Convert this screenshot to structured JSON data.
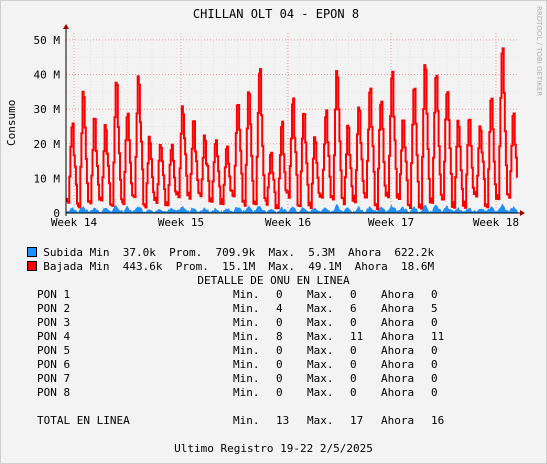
{
  "chart_data": {
    "type": "area",
    "title": "CHILLAN OLT 04 - EPON 8",
    "ylabel": "Consumo",
    "watermark": "RRDTOOL / TOBI OETIKER",
    "y_ticks": [
      "0",
      "10 M",
      "20 M",
      "30 M",
      "40 M",
      "50 M"
    ],
    "ylim": [
      0,
      52
    ],
    "x_ticks": [
      "Week 14",
      "Week 15",
      "Week 16",
      "Week 17",
      "Week 18"
    ],
    "grid": true,
    "series": [
      {
        "name": "Subida",
        "color": "#1e90ff",
        "style": "area",
        "stats": {
          "min": "37.0k",
          "prom": "709.9k",
          "max": "5.3M",
          "ahora": "622.2k"
        }
      },
      {
        "name": "Bajada",
        "color": "#ff0000",
        "style": "line",
        "stats": {
          "min": "443.6k",
          "prom": "15.1M",
          "max": "49.1M",
          "ahora": "18.6M"
        }
      }
    ],
    "daily_peaks": [
      26,
      35,
      27,
      25,
      38,
      30,
      40,
      22,
      20,
      20,
      31,
      27,
      22,
      22,
      20,
      33,
      36,
      42,
      18,
      26,
      33,
      31,
      22,
      30,
      42,
      26,
      31,
      37,
      34,
      41,
      27,
      38,
      43,
      41,
      37,
      27,
      29,
      25,
      33,
      49,
      29
    ]
  },
  "legend": {
    "subida": {
      "label": "Subida",
      "min_label": "Min",
      "min": "37.0k",
      "prom_label": "Prom.",
      "prom": "709.9k",
      "max_label": "Max.",
      "max": "5.3M",
      "ahora_label": "Ahora",
      "ahora": "622.2k"
    },
    "bajada": {
      "label": "Bajada",
      "min_label": "Min",
      "min": "443.6k",
      "prom_label": "Prom.",
      "prom": "15.1M",
      "max_label": "Max.",
      "max": "49.1M",
      "ahora_label": "Ahora",
      "ahora": "18.6M"
    }
  },
  "detail": {
    "title": "DETALLE DE ONU EN LINEA",
    "min_label": "Min.",
    "max_label": "Max.",
    "ahora_label": "Ahora",
    "rows": [
      {
        "name": "PON 1",
        "min": "0",
        "max": "0",
        "ahora": "0"
      },
      {
        "name": "PON 2",
        "min": "4",
        "max": "6",
        "ahora": "5"
      },
      {
        "name": "PON 3",
        "min": "0",
        "max": "0",
        "ahora": "0"
      },
      {
        "name": "PON 4",
        "min": "8",
        "max": "11",
        "ahora": "11"
      },
      {
        "name": "PON 5",
        "min": "0",
        "max": "0",
        "ahora": "0"
      },
      {
        "name": "PON 6",
        "min": "0",
        "max": "0",
        "ahora": "0"
      },
      {
        "name": "PON 7",
        "min": "0",
        "max": "0",
        "ahora": "0"
      },
      {
        "name": "PON 8",
        "min": "0",
        "max": "0",
        "ahora": "0"
      }
    ],
    "total": {
      "name": "TOTAL EN LINEA",
      "min": "13",
      "max": "17",
      "ahora": "16"
    }
  },
  "footer": "Ultimo Registro 19-22 2/5/2025"
}
